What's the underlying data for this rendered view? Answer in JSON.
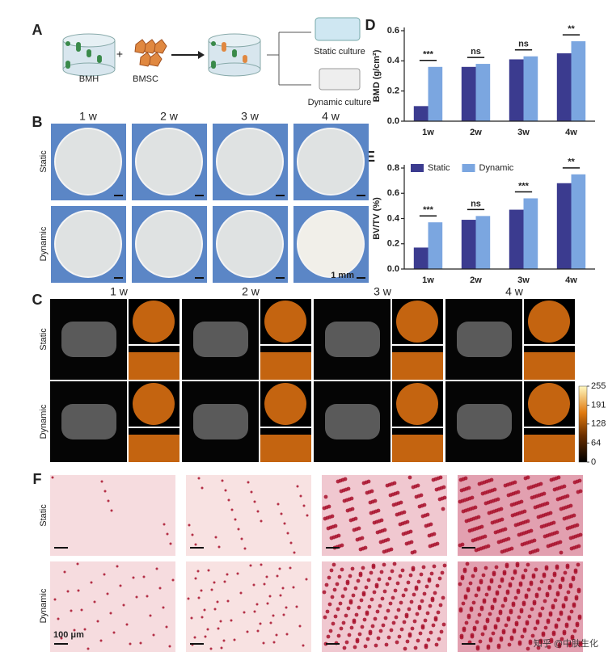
{
  "panel_labels": [
    "A",
    "B",
    "C",
    "D",
    "E",
    "F"
  ],
  "panel_a": {
    "labels": [
      "BMH",
      "BMSC",
      "Static culture",
      "Dynamic culture"
    ]
  },
  "panel_b": {
    "columns": [
      "1 w",
      "2 w",
      "3 w",
      "4 w"
    ],
    "rows": [
      "Static",
      "Dynamic"
    ],
    "scale_bar": "1 mm"
  },
  "panel_c": {
    "columns": [
      "1 w",
      "2 w",
      "3 w",
      "4 w"
    ],
    "rows": [
      "Static",
      "Dynamic"
    ],
    "colorbar_lim": [
      0,
      255
    ],
    "colorbar_ticks": [
      255,
      191,
      128,
      64,
      0
    ]
  },
  "panel_f": {
    "rows": [
      "Static",
      "Dynamic"
    ],
    "scale_bar": "100 μm"
  },
  "watermark": "知乎 @中肤生化",
  "chart_data": [
    {
      "type": "bar",
      "y_label": "BMD (g/cm²)",
      "categories": [
        "1w",
        "2w",
        "3w",
        "4w"
      ],
      "series": [
        {
          "name": "Static",
          "color": "#3b3b8f",
          "values": [
            0.1,
            0.36,
            0.41,
            0.45
          ]
        },
        {
          "name": "Dynamic",
          "color": "#7ba6e0",
          "values": [
            0.36,
            0.38,
            0.43,
            0.53
          ]
        }
      ],
      "annotations": [
        "***",
        "ns",
        "ns",
        "**"
      ],
      "ylim": [
        0,
        0.6
      ],
      "yticks": [
        {
          "value": 0,
          "label": "0.0"
        },
        0.2,
        0.4,
        0.6
      ]
    },
    {
      "type": "bar",
      "y_label": "BV/TV (%)",
      "categories": [
        "1w",
        "2w",
        "3w",
        "4w"
      ],
      "series": [
        {
          "name": "Static",
          "color": "#3b3b8f",
          "values": [
            0.17,
            0.39,
            0.47,
            0.68
          ]
        },
        {
          "name": "Dynamic",
          "color": "#7ba6e0",
          "values": [
            0.37,
            0.42,
            0.56,
            0.75
          ]
        }
      ],
      "annotations": [
        "***",
        "ns",
        "***",
        "**"
      ],
      "legend": "upper left",
      "ylim": [
        0,
        0.8
      ],
      "yticks": [
        {
          "value": 0,
          "label": "0.0"
        },
        0.2,
        0.4,
        0.6,
        0.8
      ]
    }
  ]
}
